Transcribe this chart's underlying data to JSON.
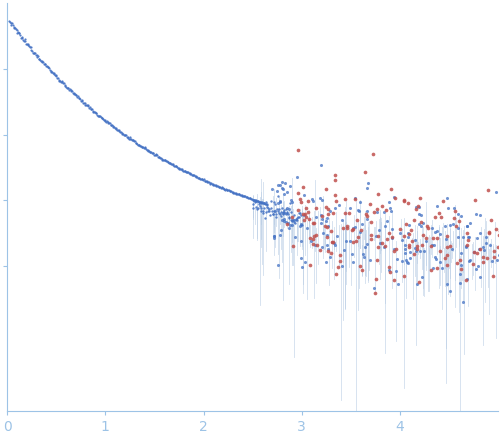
{
  "background_color": "#ffffff",
  "blue_dot_color": "#4472C4",
  "red_dot_color": "#C0504D",
  "error_bar_color": "#B8CCE4",
  "axis_color": "#9DC3E6",
  "tick_label_color": "#9DC3E6",
  "random_seed": 12345,
  "xlim": [
    0,
    5.0
  ],
  "xticks": [
    0,
    1,
    2,
    3,
    4
  ],
  "xtick_labels": [
    "0",
    "1",
    "2",
    "3",
    "4"
  ]
}
